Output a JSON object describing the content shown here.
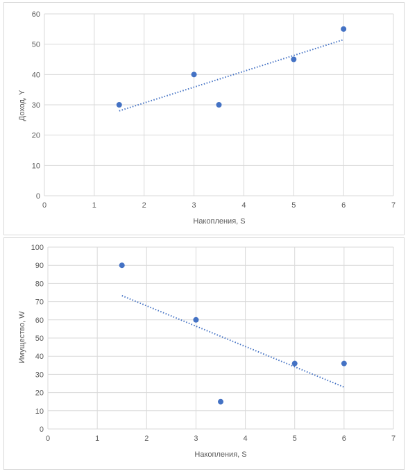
{
  "chart_data": [
    {
      "type": "scatter",
      "xlabel": "Накопления, S",
      "ylabel": "Доход, Y",
      "xlim": [
        0,
        7
      ],
      "ylim": [
        0,
        60
      ],
      "xticks": [
        0,
        1,
        2,
        3,
        4,
        5,
        6,
        7
      ],
      "yticks": [
        0,
        10,
        20,
        30,
        40,
        50,
        60
      ],
      "grid": true,
      "series": [
        {
          "x": [
            1.5,
            3,
            3.5,
            5,
            6
          ],
          "y": [
            30,
            40,
            30,
            45,
            55
          ],
          "color": "#4472c4"
        }
      ],
      "trendline": {
        "type": "linear",
        "style": "dotted",
        "x": [
          1.5,
          6
        ],
        "y": [
          28,
          51.5
        ],
        "color": "#4472c4"
      }
    },
    {
      "type": "scatter",
      "xlabel": "Накопления, S",
      "ylabel": "Имущество, W",
      "xlim": [
        0,
        7
      ],
      "ylim": [
        0,
        100
      ],
      "xticks": [
        0,
        1,
        2,
        3,
        4,
        5,
        6,
        7
      ],
      "yticks": [
        0,
        10,
        20,
        30,
        40,
        50,
        60,
        70,
        80,
        90,
        100
      ],
      "grid": true,
      "series": [
        {
          "x": [
            1.5,
            3,
            3.5,
            5,
            6
          ],
          "y": [
            90,
            60,
            15,
            36,
            36
          ],
          "color": "#4472c4"
        }
      ],
      "trendline": {
        "type": "linear",
        "style": "dotted",
        "x": [
          1.5,
          6
        ],
        "y": [
          73.3,
          23
        ],
        "color": "#4472c4"
      }
    }
  ],
  "colors": {
    "grid": "#d9d9d9",
    "text": "#595959",
    "marker": "#4472c4"
  }
}
